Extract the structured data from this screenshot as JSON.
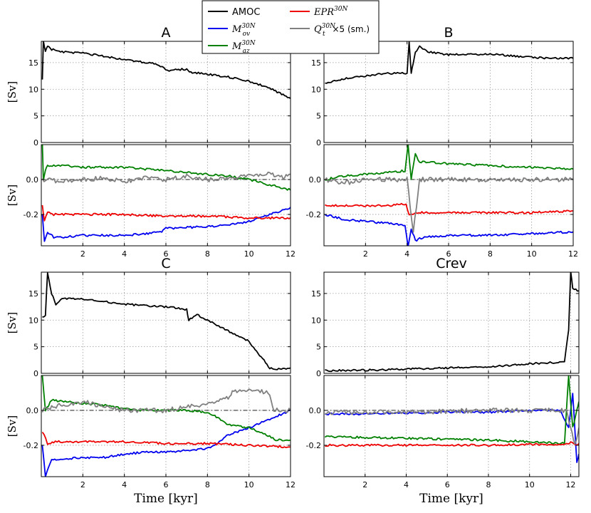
{
  "legend": {
    "entries": [
      {
        "key": "amoc",
        "label": "AMOC",
        "color": "#000000"
      },
      {
        "key": "mov",
        "label": "M",
        "sub": "ov",
        "sup": "30N",
        "color": "#0000ee"
      },
      {
        "key": "maz",
        "label": "M",
        "sub": "az",
        "sup": "30N",
        "color": "#008000"
      },
      {
        "key": "epr",
        "label": "EPR",
        "sup": "30N",
        "color": "#ee0000"
      },
      {
        "key": "qt",
        "label": "Q",
        "sub": "t",
        "sup": "30N",
        "suffix": " ×5 (sm.)",
        "color": "#808080"
      }
    ]
  },
  "chart_data": [
    {
      "type": "line",
      "panel": "A",
      "title": "A",
      "subplot": "top",
      "ylabel": "[Sv]",
      "xlabel": "",
      "xlim": [
        0,
        12
      ],
      "ylim": [
        0,
        19
      ],
      "yticks": [
        "0",
        "5",
        "10",
        "15"
      ],
      "xticks": [],
      "grid": true,
      "series": [
        {
          "name": "AMOC",
          "color": "#000000",
          "x": [
            0.05,
            0.1,
            0.2,
            0.3,
            0.5,
            1,
            2,
            3,
            4,
            5,
            5.5,
            5.9,
            6,
            7,
            7.2,
            8,
            9,
            10,
            11,
            11.5,
            12
          ],
          "y": [
            12,
            19,
            17,
            18,
            17.5,
            17,
            16.8,
            16.2,
            15.6,
            15,
            14.8,
            14,
            13.5,
            13.8,
            13.2,
            12.8,
            12.3,
            11.5,
            10.2,
            9.2,
            8.3
          ]
        }
      ]
    },
    {
      "type": "line",
      "panel": "A",
      "title": "",
      "subplot": "bottom",
      "ylabel": "[Sv]",
      "xlabel": "",
      "xlim": [
        0,
        12
      ],
      "ylim": [
        -0.38,
        0.2
      ],
      "yticks": [
        "-0.2",
        "0.0"
      ],
      "xticks": [
        "2",
        "4",
        "6",
        "8",
        "10",
        "12"
      ],
      "grid": true,
      "series": [
        {
          "name": "Mov",
          "color": "#0000ee",
          "x": [
            0.05,
            0.15,
            0.3,
            0.6,
            1,
            2,
            3,
            4,
            5,
            5.8,
            6,
            8,
            9,
            10,
            11,
            12
          ],
          "y": [
            -0.2,
            -0.36,
            -0.3,
            -0.33,
            -0.33,
            -0.32,
            -0.32,
            -0.32,
            -0.31,
            -0.3,
            -0.28,
            -0.27,
            -0.26,
            -0.24,
            -0.2,
            -0.16
          ]
        },
        {
          "name": "Maz",
          "color": "#008000",
          "x": [
            0.05,
            0.1,
            0.2,
            0.3,
            0.6,
            1,
            2,
            3,
            4,
            5,
            6,
            7,
            8,
            9,
            10,
            11,
            12
          ],
          "y": [
            0.2,
            0.0,
            0.05,
            0.08,
            0.08,
            0.08,
            0.07,
            0.07,
            0.07,
            0.06,
            0.05,
            0.04,
            0.03,
            0.02,
            0.0,
            -0.03,
            -0.06
          ]
        },
        {
          "name": "EPR",
          "color": "#ee0000",
          "x": [
            0.05,
            0.15,
            0.3,
            0.6,
            1,
            2,
            4,
            6,
            8,
            10,
            12
          ],
          "y": [
            -0.15,
            -0.24,
            -0.19,
            -0.2,
            -0.2,
            -0.2,
            -0.2,
            -0.21,
            -0.21,
            -0.22,
            -0.22
          ]
        },
        {
          "name": "Qt",
          "color": "#808080",
          "x": [
            0.05,
            0.3,
            1,
            2,
            3,
            4,
            5,
            6,
            7,
            8,
            9,
            10,
            11,
            11.5,
            12
          ],
          "y": [
            0.0,
            0.0,
            -0.01,
            0.0,
            0.01,
            -0.01,
            0.01,
            0.0,
            0.02,
            0.0,
            0.01,
            0.02,
            0.03,
            0.01,
            0.03
          ]
        }
      ]
    },
    {
      "type": "line",
      "panel": "B",
      "title": "B",
      "subplot": "top",
      "ylabel": "",
      "xlabel": "",
      "xlim": [
        0,
        12
      ],
      "ylim": [
        0,
        19
      ],
      "yticks": [
        "0",
        "5",
        "10",
        "15"
      ],
      "xticks": [],
      "grid": true,
      "series": [
        {
          "name": "AMOC",
          "color": "#000000",
          "x": [
            0.05,
            0.5,
            1,
            2,
            3,
            4,
            4.1,
            4.2,
            4.3,
            4.4,
            4.6,
            5,
            6,
            7,
            8,
            9,
            10,
            11,
            12
          ],
          "y": [
            11,
            11.5,
            12,
            12.5,
            13,
            13,
            19,
            13,
            15,
            17,
            18,
            17,
            16.5,
            16.5,
            16.6,
            16.3,
            16,
            15.8,
            15.8
          ]
        }
      ]
    },
    {
      "type": "line",
      "panel": "B",
      "title": "",
      "subplot": "bottom",
      "ylabel": "",
      "xlabel": "",
      "xlim": [
        0,
        12
      ],
      "ylim": [
        -0.38,
        0.2
      ],
      "yticks": [
        "-0.2",
        "0.0"
      ],
      "xticks": [
        "2",
        "4",
        "6",
        "8",
        "10",
        "12"
      ],
      "grid": true,
      "series": [
        {
          "name": "Mov",
          "color": "#0000ee",
          "x": [
            0.05,
            1,
            2,
            3,
            3.9,
            4.05,
            4.2,
            4.4,
            4.6,
            5,
            6,
            8,
            10,
            12
          ],
          "y": [
            -0.2,
            -0.23,
            -0.24,
            -0.25,
            -0.26,
            -0.38,
            -0.28,
            -0.35,
            -0.34,
            -0.33,
            -0.32,
            -0.32,
            -0.31,
            -0.3
          ]
        },
        {
          "name": "Maz",
          "color": "#008000",
          "x": [
            0.05,
            1,
            2,
            3,
            3.9,
            4.05,
            4.2,
            4.4,
            4.6,
            5,
            6,
            8,
            10,
            12
          ],
          "y": [
            0.0,
            0.02,
            0.03,
            0.04,
            0.05,
            0.2,
            0.0,
            0.15,
            0.1,
            0.1,
            0.09,
            0.08,
            0.07,
            0.06
          ]
        },
        {
          "name": "EPR",
          "color": "#ee0000",
          "x": [
            0.05,
            1,
            2,
            3,
            3.95,
            4.1,
            4.3,
            4.5,
            5,
            6,
            8,
            10,
            12
          ],
          "y": [
            -0.15,
            -0.15,
            -0.15,
            -0.15,
            -0.14,
            -0.2,
            -0.2,
            -0.19,
            -0.19,
            -0.19,
            -0.19,
            -0.19,
            -0.18
          ]
        },
        {
          "name": "Qt",
          "color": "#808080",
          "x": [
            0.05,
            1,
            2,
            3,
            4,
            4.3,
            4.6,
            5,
            6,
            7,
            8,
            9,
            10,
            11,
            12
          ],
          "y": [
            0.0,
            -0.02,
            0.0,
            0.0,
            0.0,
            -0.3,
            0.0,
            0.0,
            0.0,
            0.0,
            0.0,
            0.0,
            0.0,
            0.0,
            0.0
          ]
        }
      ]
    },
    {
      "type": "line",
      "panel": "C",
      "title": "C",
      "subplot": "top",
      "ylabel": "[Sv]",
      "xlabel": "",
      "xlim": [
        0,
        12
      ],
      "ylim": [
        0,
        19
      ],
      "yticks": [
        "0",
        "5",
        "10",
        "15"
      ],
      "xticks": [],
      "grid": true,
      "series": [
        {
          "name": "AMOC",
          "color": "#000000",
          "x": [
            0.05,
            0.2,
            0.3,
            0.5,
            0.7,
            1,
            2,
            3,
            4,
            5,
            6,
            7,
            7.1,
            7.5,
            8,
            9,
            10,
            10.8,
            11,
            11.5,
            12
          ],
          "y": [
            10.5,
            11,
            19,
            15,
            13,
            14,
            14,
            13.5,
            13,
            12.7,
            12.5,
            12,
            10,
            11,
            10,
            8,
            6,
            2,
            1,
            0.8,
            1
          ]
        }
      ]
    },
    {
      "type": "line",
      "panel": "C",
      "title": "",
      "subplot": "bottom",
      "ylabel": "[Sv]",
      "xlabel": "Time [kyr]",
      "xlim": [
        0,
        12
      ],
      "ylim": [
        -0.38,
        0.2
      ],
      "yticks": [
        "-0.2",
        "0.0"
      ],
      "xticks": [
        "2",
        "4",
        "6",
        "8",
        "10",
        "12"
      ],
      "grid": true,
      "series": [
        {
          "name": "Mov",
          "color": "#0000ee",
          "x": [
            0.05,
            0.2,
            0.5,
            1,
            2,
            3,
            4,
            5,
            6,
            7,
            8,
            8.5,
            9,
            10,
            11,
            12
          ],
          "y": [
            -0.2,
            -0.38,
            -0.28,
            -0.28,
            -0.27,
            -0.27,
            -0.25,
            -0.24,
            -0.24,
            -0.23,
            -0.22,
            -0.19,
            -0.14,
            -0.1,
            -0.05,
            0.0
          ]
        },
        {
          "name": "Maz",
          "color": "#008000",
          "x": [
            0.05,
            0.2,
            0.5,
            1,
            2,
            3,
            4,
            5,
            6,
            7,
            8,
            8.5,
            9,
            10,
            11,
            11.3,
            12
          ],
          "y": [
            0.2,
            0.0,
            0.06,
            0.05,
            0.04,
            0.03,
            0.01,
            0.0,
            0.0,
            0.0,
            -0.01,
            -0.04,
            -0.08,
            -0.1,
            -0.15,
            -0.17,
            -0.17
          ]
        },
        {
          "name": "EPR",
          "color": "#ee0000",
          "x": [
            0.05,
            0.3,
            0.6,
            1,
            2,
            4,
            6,
            8,
            10,
            12
          ],
          "y": [
            -0.12,
            -0.19,
            -0.18,
            -0.18,
            -0.18,
            -0.18,
            -0.19,
            -0.19,
            -0.2,
            -0.21
          ]
        },
        {
          "name": "Qt",
          "color": "#808080",
          "x": [
            0.05,
            0.5,
            1,
            2,
            3,
            4,
            5,
            6,
            7,
            8,
            9,
            9.2,
            10,
            11,
            11.2,
            12
          ],
          "y": [
            0.0,
            0.02,
            0.03,
            0.05,
            0.02,
            0.0,
            0.0,
            0.0,
            0.02,
            0.03,
            0.07,
            0.11,
            0.12,
            0.1,
            0.0,
            0.0
          ]
        }
      ]
    },
    {
      "type": "line",
      "panel": "Crev",
      "title": "Crev",
      "subplot": "top",
      "ylabel": "",
      "xlabel": "",
      "xlim": [
        0,
        12.4
      ],
      "ylim": [
        0,
        19
      ],
      "yticks": [
        "0",
        "5",
        "10",
        "15"
      ],
      "xticks": [],
      "grid": true,
      "series": [
        {
          "name": "AMOC",
          "color": "#000000",
          "x": [
            0.05,
            2,
            4,
            6,
            8,
            9,
            10,
            11,
            11.7,
            11.9,
            12,
            12.1,
            12.4
          ],
          "y": [
            0.5,
            0.6,
            0.8,
            1,
            1.2,
            1.5,
            1.8,
            2,
            2.2,
            8,
            19,
            16,
            15.5
          ]
        }
      ]
    },
    {
      "type": "line",
      "panel": "Crev",
      "title": "",
      "subplot": "bottom",
      "ylabel": "",
      "xlabel": "Time [kyr]",
      "xlim": [
        0,
        12.4
      ],
      "ylim": [
        -0.38,
        0.2
      ],
      "yticks": [
        "-0.2",
        "0.0"
      ],
      "xticks": [
        "2",
        "4",
        "6",
        "8",
        "10",
        "12"
      ],
      "grid": true,
      "series": [
        {
          "name": "Mov",
          "color": "#0000ee",
          "x": [
            0.05,
            2,
            4,
            6,
            8,
            10,
            11.5,
            11.9,
            12.1,
            12.3,
            12.4
          ],
          "y": [
            -0.02,
            -0.02,
            -0.015,
            -0.01,
            -0.01,
            0.0,
            0.0,
            -0.1,
            0.1,
            -0.3,
            -0.25
          ]
        },
        {
          "name": "Maz",
          "color": "#008000",
          "x": [
            0.05,
            2,
            4,
            6,
            8,
            10,
            11.7,
            11.9,
            12.1,
            12.3,
            12.4
          ],
          "y": [
            -0.15,
            -0.155,
            -0.16,
            -0.165,
            -0.17,
            -0.18,
            -0.19,
            0.2,
            -0.1,
            0.0,
            0.05
          ]
        },
        {
          "name": "EPR",
          "color": "#ee0000",
          "x": [
            0.05,
            2,
            4,
            6,
            8,
            10,
            11.8,
            12.0,
            12.2,
            12.4
          ],
          "y": [
            -0.2,
            -0.2,
            -0.2,
            -0.2,
            -0.2,
            -0.195,
            -0.195,
            -0.18,
            -0.2,
            -0.19
          ]
        },
        {
          "name": "Qt",
          "color": "#808080",
          "x": [
            0.05,
            2,
            4,
            6,
            8,
            10,
            11.8,
            12.0,
            12.2,
            12.4
          ],
          "y": [
            -0.01,
            -0.01,
            -0.01,
            -0.005,
            0.0,
            0.0,
            0.0,
            -0.1,
            -0.2,
            -0.1
          ]
        }
      ]
    }
  ]
}
